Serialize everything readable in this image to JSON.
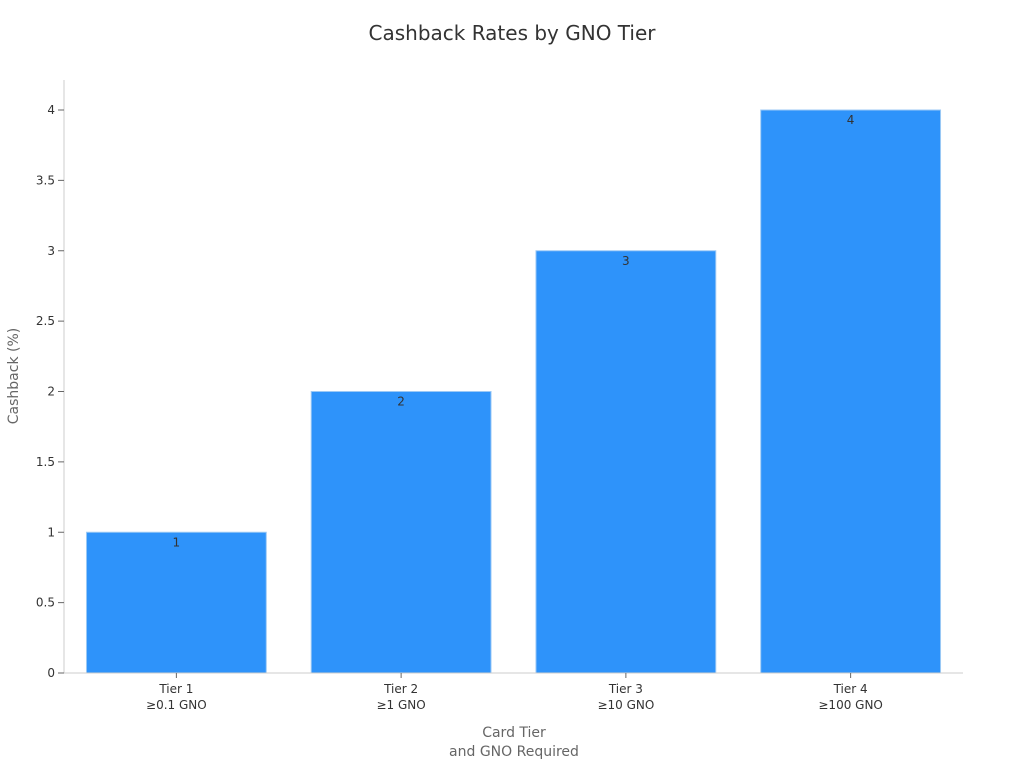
{
  "chart_data": {
    "type": "bar",
    "title": "Cashback Rates by GNO Tier",
    "xlabel": [
      "Card Tier",
      "and GNO Required"
    ],
    "ylabel": "Cashback (%)",
    "categories": [
      [
        "Tier 1",
        "≥0.1 GNO"
      ],
      [
        "Tier 2",
        "≥1 GNO"
      ],
      [
        "Tier 3",
        "≥10 GNO"
      ],
      [
        "Tier 4",
        "≥100 GNO"
      ]
    ],
    "values": [
      1,
      2,
      3,
      4
    ],
    "data_labels": [
      "1",
      "2",
      "3",
      "4"
    ],
    "ylim": [
      0,
      4.2
    ],
    "yticks": [
      "0",
      "0.5",
      "1",
      "1.5",
      "2",
      "2.5",
      "3",
      "3.5",
      "4"
    ],
    "grid": false,
    "bar_color": "#2e93fa"
  }
}
